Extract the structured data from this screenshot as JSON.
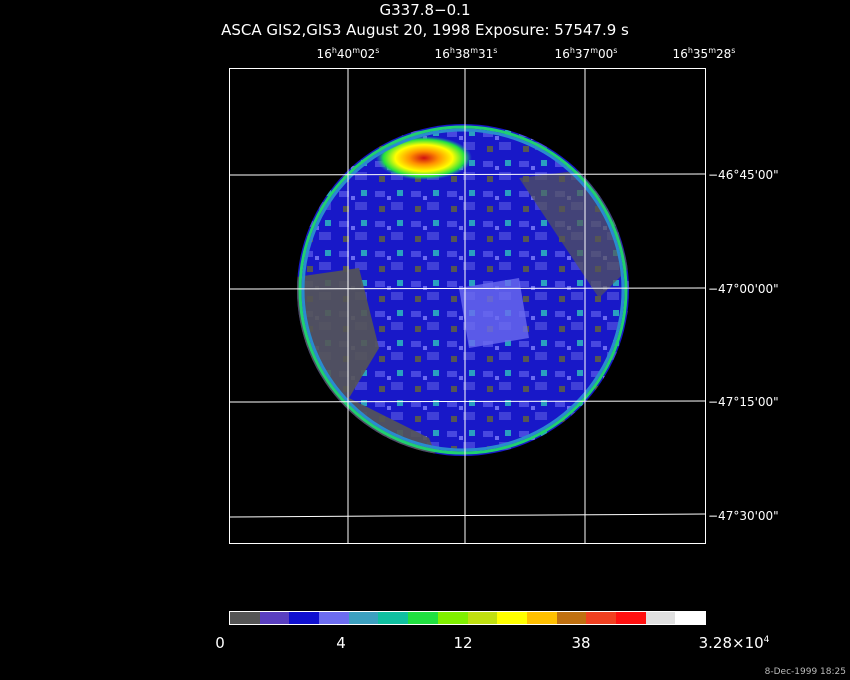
{
  "header": {
    "title": "G337.8−0.1",
    "subtitle": "ASCA GIS2,GIS3 August 20, 1998 Exposure: 57547.9 s"
  },
  "ra_labels": [
    {
      "h": "16",
      "m": "40",
      "s": "02"
    },
    {
      "h": "16",
      "m": "38",
      "s": "31"
    },
    {
      "h": "16",
      "m": "37",
      "s": "00"
    },
    {
      "h": "16",
      "m": "35",
      "s": "28"
    }
  ],
  "dec_labels": [
    "−46°45'00\"",
    "−47°00'00\"",
    "−47°15'00\"",
    "−47°30'00\""
  ],
  "colorbar": {
    "colors": [
      "#555555",
      "#5a3fc0",
      "#1010d0",
      "#6c6cf0",
      "#3ca0c0",
      "#10c0a0",
      "#20e040",
      "#80f000",
      "#c0e010",
      "#ffff00",
      "#ffc000",
      "#c07010",
      "#f04020",
      "#ff1010",
      "#e0e0e0",
      "#ffffff"
    ],
    "labels": [
      "0",
      "4",
      "12",
      "38"
    ],
    "max_mantissa": "3.28×10",
    "max_exp": "4"
  },
  "footer": {
    "timestamp": "8-Dec-1999 18:25"
  }
}
